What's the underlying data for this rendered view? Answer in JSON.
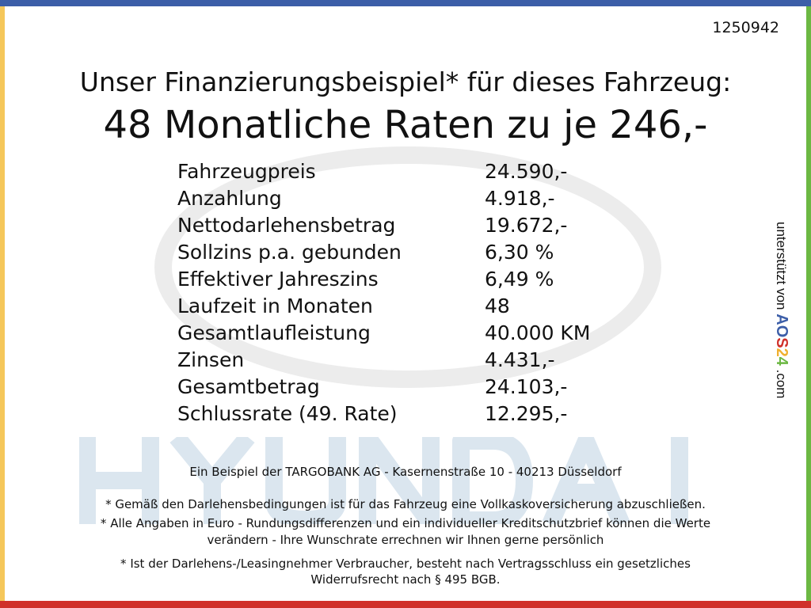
{
  "frame_colors": {
    "top": "#3c5ea8",
    "bottom": "#d0302a",
    "left": "#f5c75a",
    "right": "#6cb843"
  },
  "watermark": {
    "brand": "HYUNDAI"
  },
  "reference_number": "1250942",
  "headline": "Unser Finanzierungsbeispiel* für dieses Fahrzeug:",
  "rate_line": "48 Monatliche Raten zu je 246,-",
  "rows": [
    {
      "label": "Fahrzeugpreis",
      "value": "24.590,-"
    },
    {
      "label": "Anzahlung",
      "value": "4.918,-"
    },
    {
      "label": "Nettodarlehensbetrag",
      "value": "19.672,-"
    },
    {
      "label": "Sollzins p.a. gebunden",
      "value": "6,30 %"
    },
    {
      "label": "Effektiver Jahreszins",
      "value": "6,49 %"
    },
    {
      "label": "Laufzeit in Monaten",
      "value": "48"
    },
    {
      "label": "Gesamtlaufleistung",
      "value": "40.000 KM"
    },
    {
      "label": "Zinsen",
      "value": "4.431,-"
    },
    {
      "label": "Gesamtbetrag",
      "value": "24.103,-"
    },
    {
      "label": "Schlussrate (49. Rate)",
      "value": "12.295,-"
    }
  ],
  "side": {
    "prefix": "unterstützt von",
    "logo": "AOS24",
    "suffix": ".com"
  },
  "notes": {
    "bank": "Ein Beispiel der TARGOBANK AG - Kasernenstraße 10 - 40213 Düsseldorf",
    "insurance": "* Gemäß den Darlehensbedingungen ist für das Fahrzeug eine Vollkaskoversicherung abzuschließen.",
    "euro_1": "* Alle Angaben in Euro - Rundungsdifferenzen und ein individueller Kreditschutzbrief können die Werte",
    "euro_2": "verändern - Ihre Wunschrate errechnen wir Ihnen gerne persönlich",
    "widerruf_1": "* Ist der Darlehens-/Leasingnehmer Verbraucher, besteht nach Vertragsschluss ein gesetzliches",
    "widerruf_2": "Widerrufsrecht nach § 495 BGB."
  }
}
